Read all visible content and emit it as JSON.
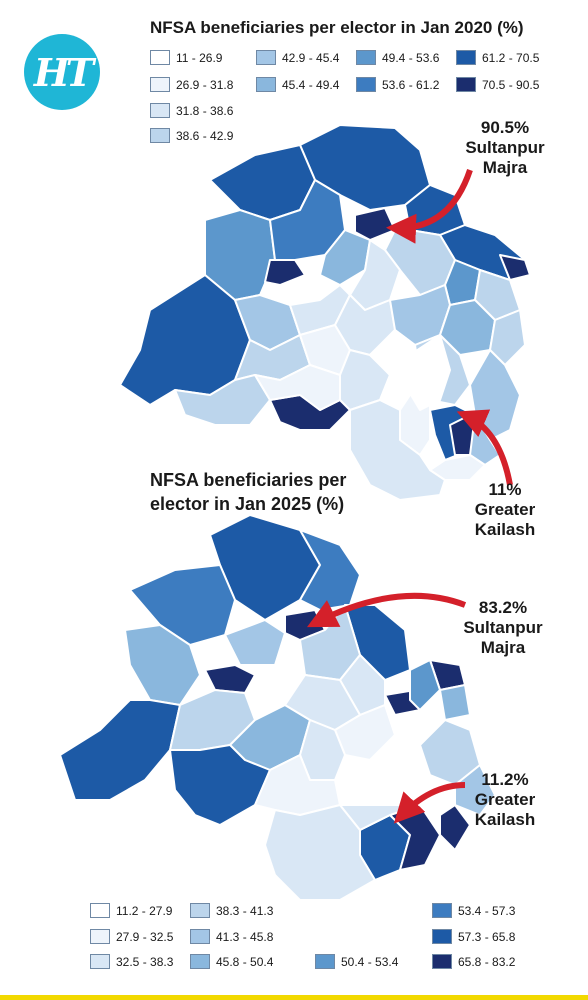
{
  "logo": {
    "text": "HT"
  },
  "map2020": {
    "title": "NFSA beneficiaries per elector in Jan 2020 (%)",
    "legend": [
      {
        "label": "11 - 26.9",
        "color": "#ffffff"
      },
      {
        "label": "26.9 - 31.8",
        "color": "#eef4fb"
      },
      {
        "label": "31.8 - 38.6",
        "color": "#d9e7f5"
      },
      {
        "label": "38.6 - 42.9",
        "color": "#bcd5ec"
      },
      {
        "label": "42.9 - 45.4",
        "color": "#a3c6e6"
      },
      {
        "label": "45.4 - 49.4",
        "color": "#8ab7dd"
      },
      {
        "label": "49.4 - 53.6",
        "color": "#5c97cc"
      },
      {
        "label": "53.6 - 61.2",
        "color": "#3d7cc0"
      },
      {
        "label": "61.2 - 70.5",
        "color": "#1d5aa6"
      },
      {
        "label": "70.5 - 90.5",
        "color": "#1b2d6e"
      }
    ],
    "annotations": [
      {
        "value": "90.5%",
        "name": "Sultanpur Majra",
        "line1": "Sultanpur",
        "line2": "Majra"
      },
      {
        "value": "11%",
        "name": "Greater Kailash",
        "line1": "Greater",
        "line2": "Kailash"
      }
    ]
  },
  "map2025": {
    "title": "NFSA beneficiaries per elector in Jan 2025 (%)",
    "title_line1": "NFSA beneficiaries per",
    "title_line2": "elector in Jan 2025 (%)",
    "legend": [
      {
        "label": "11.2 - 27.9",
        "color": "#ffffff"
      },
      {
        "label": "27.9 - 32.5",
        "color": "#eef4fb"
      },
      {
        "label": "32.5 - 38.3",
        "color": "#d9e7f5"
      },
      {
        "label": "38.3 - 41.3",
        "color": "#bcd5ec"
      },
      {
        "label": "41.3 - 45.8",
        "color": "#a3c6e6"
      },
      {
        "label": "45.8 - 50.4",
        "color": "#8ab7dd"
      },
      {
        "label": "50.4 - 53.4",
        "color": "#5c97cc"
      },
      {
        "label": "53.4 - 57.3",
        "color": "#3d7cc0"
      },
      {
        "label": "57.3 - 65.8",
        "color": "#1d5aa6"
      },
      {
        "label": "65.8 - 83.2",
        "color": "#1b2d6e"
      }
    ],
    "annotations": [
      {
        "value": "83.2%",
        "name": "Sultanpur Majra",
        "line1": "Sultanpur",
        "line2": "Majra"
      },
      {
        "value": "11.2%",
        "name": "Greater Kailash",
        "line1": "Greater",
        "line2": "Kailash"
      }
    ]
  },
  "colors": {
    "arrow": "#d4202a",
    "border": "#ffffff",
    "accent_bar": "#f2d900",
    "logo_bg": "#1fb6d6"
  }
}
